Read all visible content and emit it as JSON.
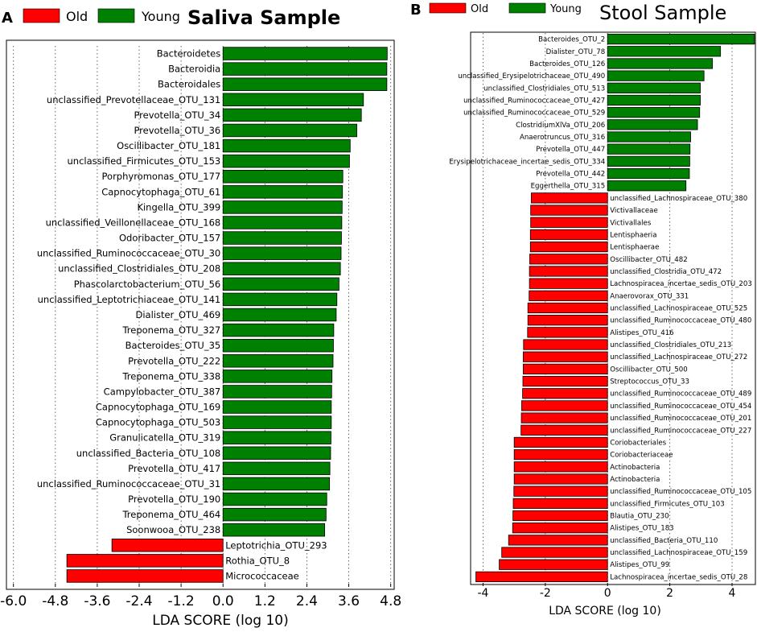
{
  "panels": {
    "a": {
      "letter": "A"
    },
    "b": {
      "letter": "B"
    }
  },
  "colors": {
    "old": "#ff0000",
    "young": "#008000"
  },
  "chart_data": [
    {
      "type": "bar",
      "orientation": "horizontal",
      "title": "Saliva Sample",
      "xlabel": "LDA SCORE (log 10)",
      "ylabel": "",
      "xlim": [
        -6.2,
        4.9
      ],
      "xticks": [
        "-6.0",
        "-4.8",
        "-3.6",
        "-2.4",
        "-1.2",
        "0.0",
        "1.2",
        "2.4",
        "3.6",
        "4.8"
      ],
      "legend": {
        "placement": "top-left",
        "entries": [
          "Old",
          "Young"
        ]
      },
      "series": [
        {
          "name": "Young",
          "color": "#008000"
        },
        {
          "name": "Old",
          "color": "#ff0000"
        }
      ],
      "categories": [
        "Bacteroidetes",
        "Bacteroidia",
        "Bacteroidales",
        "unclassified_Prevotellaceae_OTU_131",
        "Prevotella_OTU_34",
        "Prevotella_OTU_36",
        "Oscillibacter_OTU_181",
        "unclassified_Firmicutes_OTU_153",
        "Porphyromonas_OTU_177",
        "Capnocytophaga_OTU_61",
        "Kingella_OTU_399",
        "unclassified_Veillonellaceae_OTU_168",
        "Odoribacter_OTU_157",
        "unclassified_Ruminococcaceae_OTU_30",
        "unclassified_Clostridiales_OTU_208",
        "Phascolarctobacterium_OTU_56",
        "unclassified_Leptotrichiaceae_OTU_141",
        "Dialister_OTU_469",
        "Treponema_OTU_327",
        "Bacteroides_OTU_35",
        "Prevotella_OTU_222",
        "Treponema_OTU_338",
        "Campylobacter_OTU_387",
        "Capnocytophaga_OTU_169",
        "Capnocytophaga_OTU_503",
        "Granulicatella_OTU_319",
        "unclassified_Bacteria_OTU_108",
        "Prevotella_OTU_417",
        "unclassified_Ruminococcaceae_OTU_31",
        "Prevotella_OTU_190",
        "Treponema_OTU_464",
        "Soonwooa_OTU_238",
        "Leptotrichia_OTU_293",
        "Rothia_OTU_8",
        "Micrococcaceae"
      ],
      "values": [
        4.7,
        4.69,
        4.69,
        4.02,
        3.96,
        3.83,
        3.64,
        3.62,
        3.43,
        3.42,
        3.41,
        3.4,
        3.39,
        3.38,
        3.36,
        3.32,
        3.26,
        3.24,
        3.17,
        3.16,
        3.15,
        3.12,
        3.11,
        3.1,
        3.1,
        3.09,
        3.08,
        3.06,
        3.05,
        2.97,
        2.95,
        2.91,
        -3.18,
        -4.47,
        -4.47
      ],
      "groups": [
        "Young",
        "Young",
        "Young",
        "Young",
        "Young",
        "Young",
        "Young",
        "Young",
        "Young",
        "Young",
        "Young",
        "Young",
        "Young",
        "Young",
        "Young",
        "Young",
        "Young",
        "Young",
        "Young",
        "Young",
        "Young",
        "Young",
        "Young",
        "Young",
        "Young",
        "Young",
        "Young",
        "Young",
        "Young",
        "Young",
        "Young",
        "Young",
        "Old",
        "Old",
        "Old"
      ]
    },
    {
      "type": "bar",
      "orientation": "horizontal",
      "title": "Stool Sample",
      "xlabel": "LDA SCORE (log 10)",
      "ylabel": "",
      "xlim": [
        -4.4,
        4.75
      ],
      "xticks": [
        "-4",
        "-2",
        "0",
        "2",
        "4"
      ],
      "legend": {
        "placement": "top-left",
        "entries": [
          "Old",
          "Young"
        ]
      },
      "series": [
        {
          "name": "Young",
          "color": "#008000"
        },
        {
          "name": "Old",
          "color": "#ff0000"
        }
      ],
      "categories": [
        "Bacteroides_OTU_2",
        "Dialister_OTU_78",
        "Bacteroides_OTU_126",
        "unclassified_Erysipelotrichaceae_OTU_490",
        "unclassified_Clostridiales_OTU_513",
        "unclassified_Ruminococcaceae_OTU_427",
        "unclassified_Ruminococcaceae_OTU_529",
        "ClostridiumXlVa_OTU_206",
        "Anaerotruncus_OTU_316",
        "Prevotella_OTU_447",
        "Erysipelotrichaceae_incertae_sedis_OTU_334",
        "Prevotella_OTU_442",
        "Eggerthella_OTU_315",
        "unclassified_Lachnospiraceae_OTU_380",
        "Victivallaceae",
        "Victivallales",
        "Lentisphaeria",
        "Lentisphaerae",
        "Oscillibacter_OTU_482",
        "unclassified_Clostridia_OTU_472",
        "Lachnospiracea_incertae_sedis_OTU_203",
        "Anaerovorax_OTU_331",
        "unclassified_Lachnospiraceae_OTU_525",
        "unclassified_Ruminococcaceae_OTU_480",
        "Alistipes_OTU_416",
        "unclassified_Clostridiales_OTU_213",
        "unclassified_Lachnospiraceae_OTU_272",
        "Oscillibacter_OTU_500",
        "Streptococcus_OTU_33",
        "unclassified_Ruminococcaceae_OTU_489",
        "unclassified_Ruminococcaceae_OTU_454",
        "unclassified_Ruminococcaceae_OTU_201",
        "unclassified_Ruminococcaceae_OTU_227",
        "Coriobacteriales",
        "Coriobacteriaceae",
        "Actinobacteria",
        "Actinobacteria",
        "unclassified_Ruminococcaceae_OTU_105",
        "unclassified_Firmicutes_OTU_103",
        "Blautia_OTU_230",
        "Alistipes_OTU_183",
        "unclassified_Bacteria_OTU_110",
        "unclassified_Lachnospiraceae_OTU_159",
        "Alistipes_OTU_99",
        "Lachnospiracea_incertae_sedis_OTU_28"
      ],
      "values": [
        4.72,
        3.63,
        3.37,
        3.1,
        2.98,
        2.98,
        2.96,
        2.89,
        2.67,
        2.65,
        2.64,
        2.63,
        2.52,
        -2.45,
        -2.47,
        -2.47,
        -2.48,
        -2.48,
        -2.5,
        -2.51,
        -2.51,
        -2.52,
        -2.56,
        -2.56,
        -2.57,
        -2.7,
        -2.71,
        -2.71,
        -2.72,
        -2.73,
        -2.76,
        -2.77,
        -2.78,
        -3.0,
        -3.0,
        -3.0,
        -3.0,
        -3.01,
        -3.03,
        -3.04,
        -3.05,
        -3.18,
        -3.4,
        -3.48,
        -4.23
      ],
      "groups": [
        "Young",
        "Young",
        "Young",
        "Young",
        "Young",
        "Young",
        "Young",
        "Young",
        "Young",
        "Young",
        "Young",
        "Young",
        "Young",
        "Old",
        "Old",
        "Old",
        "Old",
        "Old",
        "Old",
        "Old",
        "Old",
        "Old",
        "Old",
        "Old",
        "Old",
        "Old",
        "Old",
        "Old",
        "Old",
        "Old",
        "Old",
        "Old",
        "Old",
        "Old",
        "Old",
        "Old",
        "Old",
        "Old",
        "Old",
        "Old",
        "Old",
        "Old",
        "Old",
        "Old",
        "Old"
      ]
    }
  ]
}
